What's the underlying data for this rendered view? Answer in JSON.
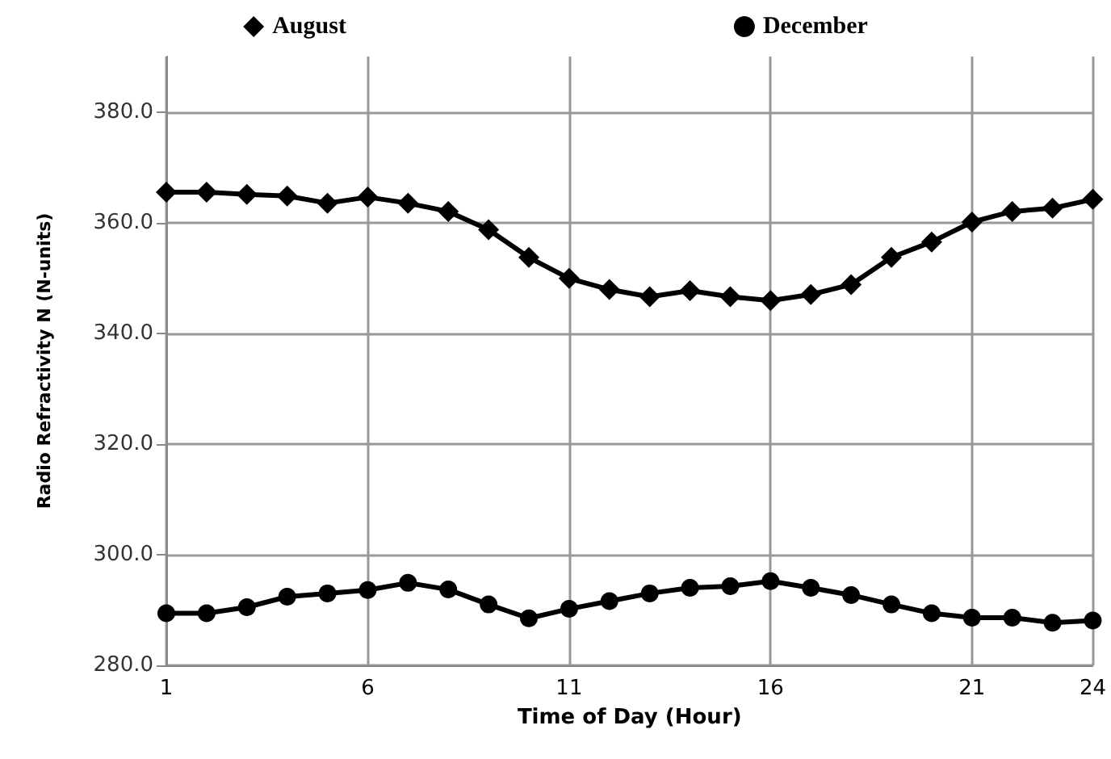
{
  "chart_data": {
    "type": "line",
    "xlabel": "Time of Day (Hour)",
    "ylabel": "Radio Refractivity N (N-units)",
    "x": [
      1,
      2,
      3,
      4,
      5,
      6,
      7,
      8,
      9,
      10,
      11,
      12,
      13,
      14,
      15,
      16,
      17,
      18,
      19,
      20,
      21,
      22,
      23,
      24
    ],
    "series": [
      {
        "name": "August",
        "color": "#000000",
        "marker": "diamond",
        "values": [
          365.5,
          365.5,
          365.1,
          364.8,
          363.5,
          364.6,
          363.5,
          362.0,
          358.7,
          353.7,
          349.9,
          347.9,
          346.6,
          347.7,
          346.6,
          345.9,
          347.0,
          348.8,
          353.7,
          356.5,
          360.1,
          362.0,
          362.6,
          364.2
        ]
      },
      {
        "name": "December",
        "color": "#000000",
        "marker": "circle",
        "values": [
          289.4,
          289.4,
          290.5,
          292.4,
          293.0,
          293.6,
          294.9,
          293.7,
          291.0,
          288.5,
          290.2,
          291.6,
          293.0,
          294.0,
          294.3,
          295.2,
          294.0,
          292.7,
          291.0,
          289.4,
          288.6,
          288.6,
          287.7,
          288.1
        ]
      }
    ],
    "xlim": [
      1,
      24
    ],
    "xticks": [
      1,
      6,
      11,
      16,
      21,
      24
    ],
    "ylim": [
      280,
      390
    ],
    "yticks": [
      {
        "value": 280,
        "label": "280.0"
      },
      {
        "value": 300,
        "label": "300.0"
      },
      {
        "value": 320,
        "label": "320.0"
      },
      {
        "value": 340,
        "label": "340.0"
      },
      {
        "value": 360,
        "label": "360.0"
      },
      {
        "value": 380,
        "label": "380.0"
      }
    ],
    "grid": true,
    "legend": "top",
    "line_style": "solid"
  }
}
